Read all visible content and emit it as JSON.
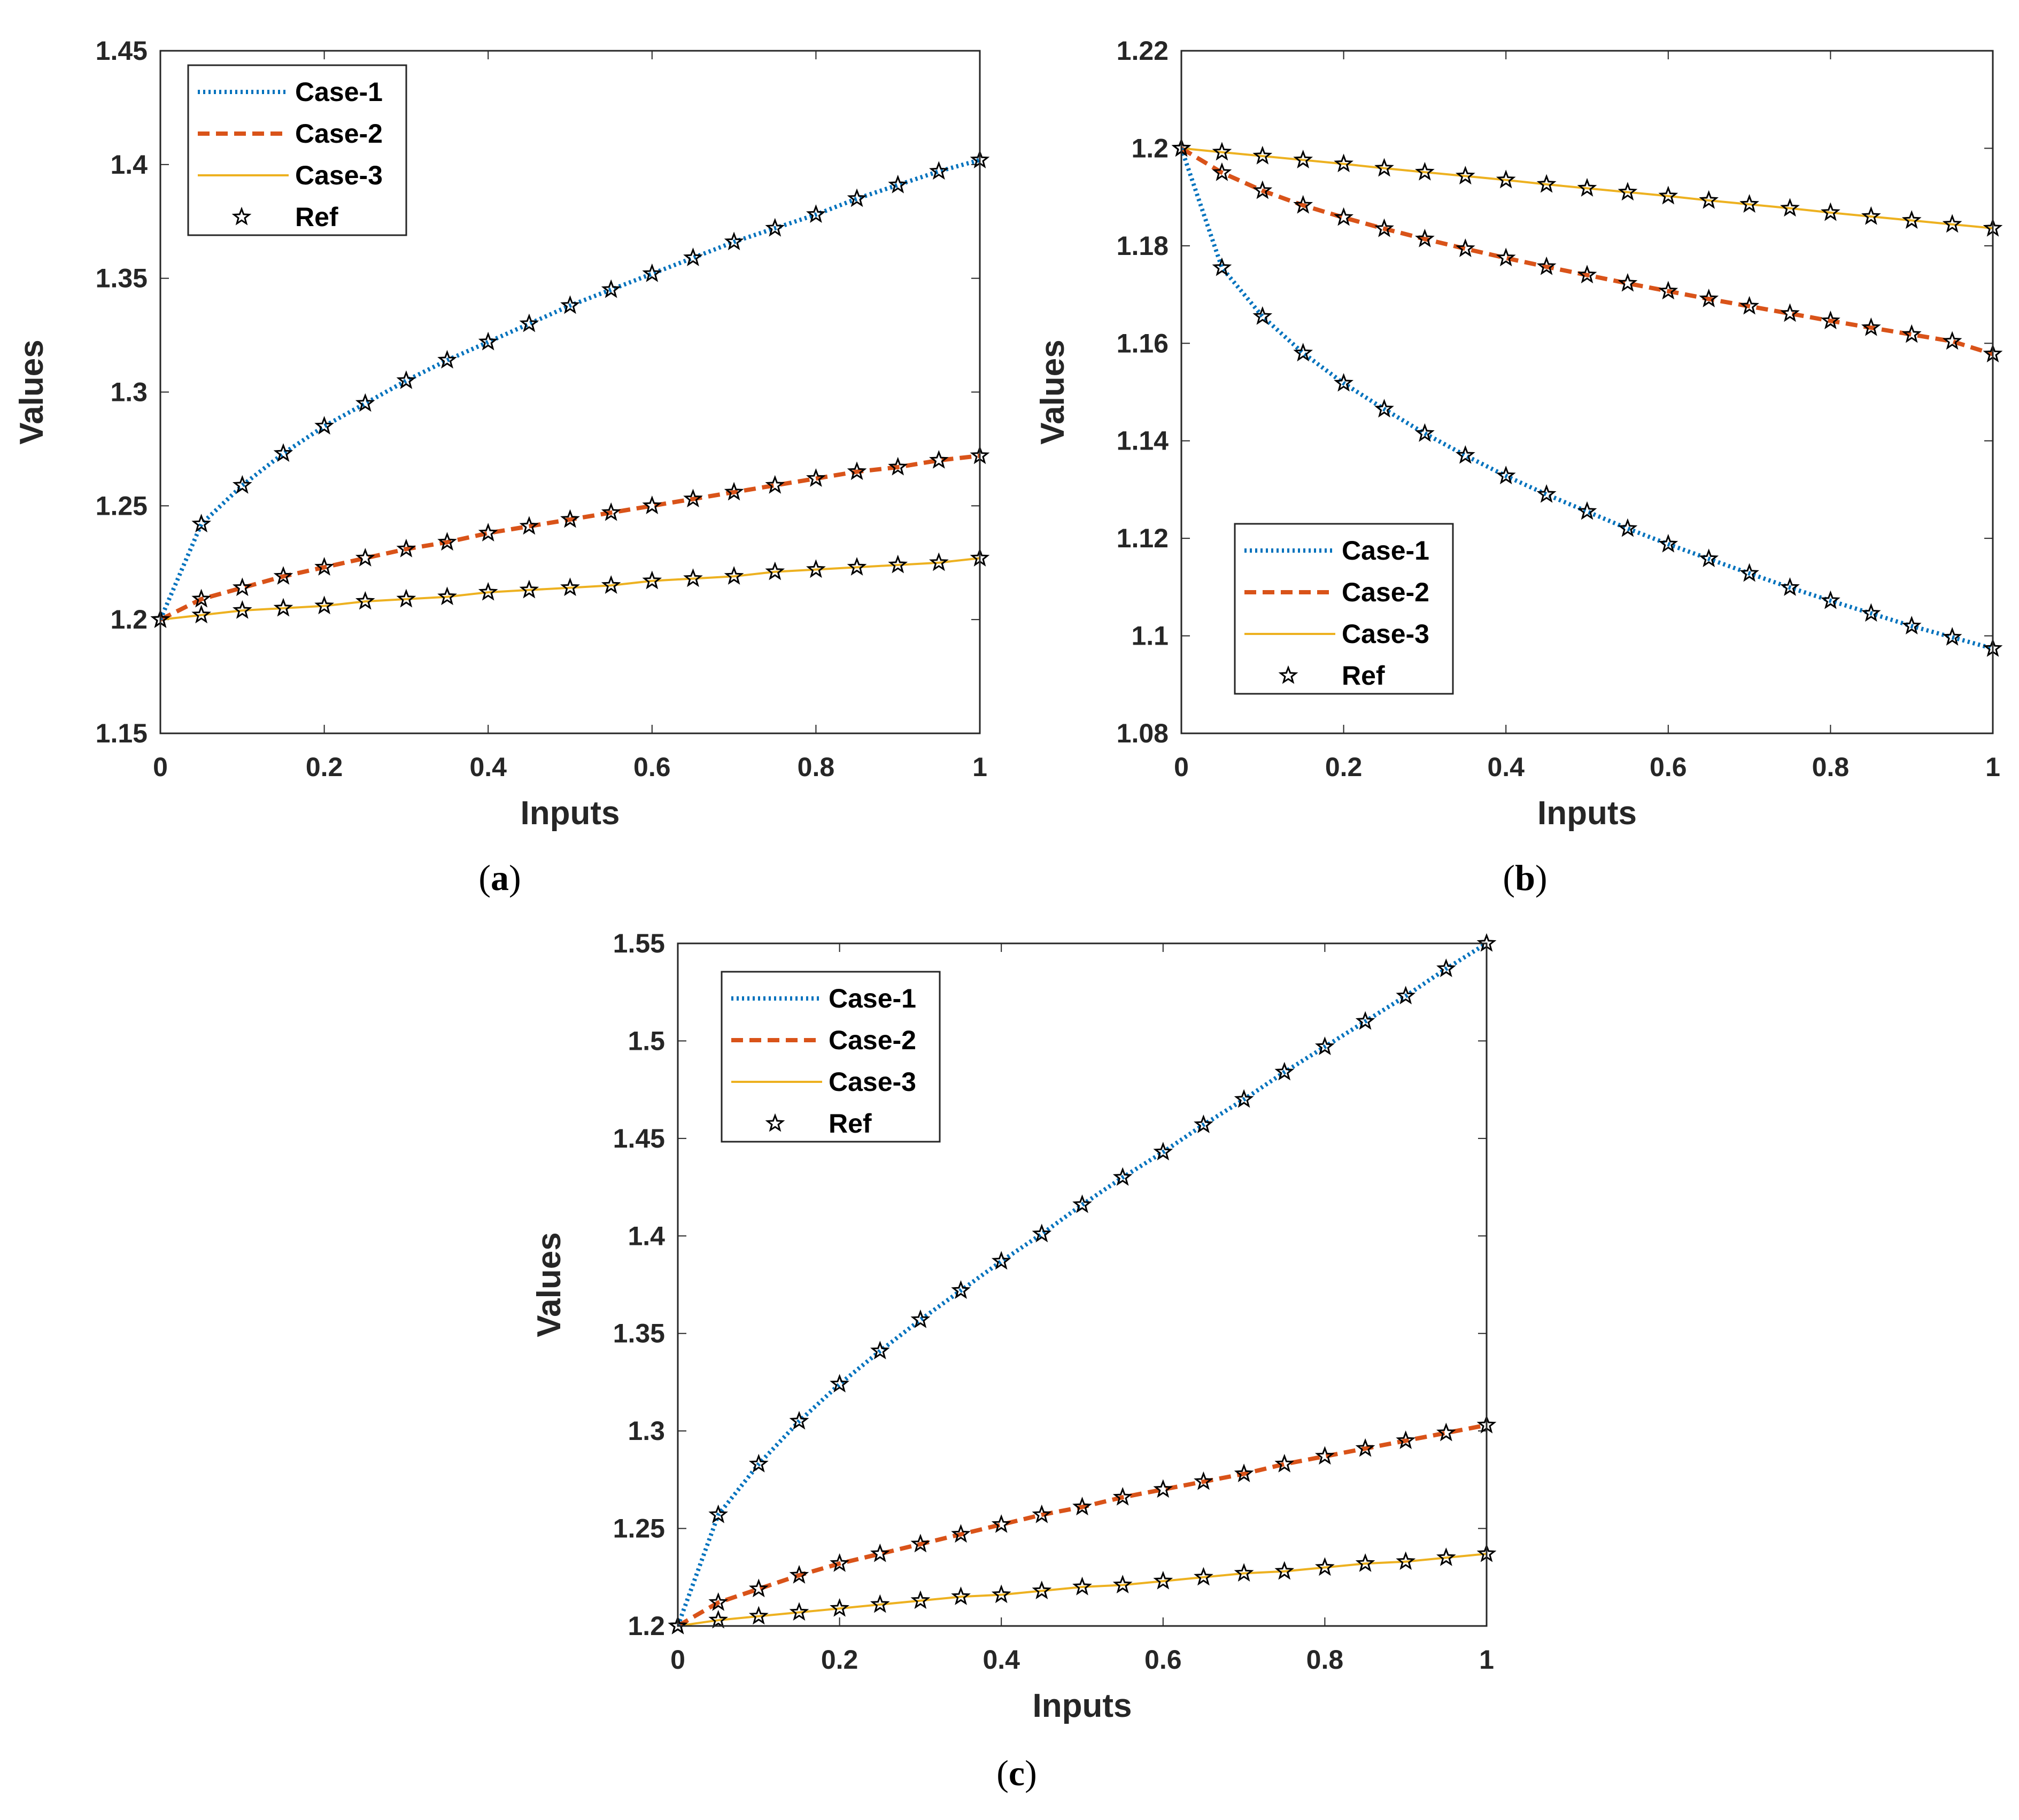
{
  "figure": {
    "captions": [
      "(a)",
      "(b)",
      "(c)"
    ],
    "caption_letters": [
      "a",
      "b",
      "c"
    ]
  },
  "chart_data": [
    {
      "panel": "(a)",
      "type": "line",
      "xlabel": "Inputs",
      "ylabel": "Values",
      "xlim": [
        0,
        1
      ],
      "ylim": [
        1.15,
        1.45
      ],
      "xticks": [
        0,
        0.2,
        0.4,
        0.6,
        0.8,
        1
      ],
      "xtick_labels": [
        "0",
        "0.2",
        "0.4",
        "0.6",
        "0.8",
        "1"
      ],
      "yticks": [
        1.15,
        1.2,
        1.25,
        1.3,
        1.35,
        1.4,
        1.45
      ],
      "ytick_labels": [
        "1.15",
        "1.2",
        "1.25",
        "1.3",
        "1.35",
        "1.4",
        "1.45"
      ],
      "legend_position": "top-left",
      "x": [
        0,
        0.05,
        0.1,
        0.15,
        0.2,
        0.25,
        0.3,
        0.35,
        0.4,
        0.45,
        0.5,
        0.55,
        0.6,
        0.65,
        0.7,
        0.75,
        0.8,
        0.85,
        0.9,
        0.95,
        1
      ],
      "series": [
        {
          "name": "Case-1",
          "style": "dotted",
          "color": "#0072BD",
          "values": [
            1.2,
            1.242,
            1.259,
            1.273,
            1.285,
            1.295,
            1.305,
            1.314,
            1.322,
            1.33,
            1.338,
            1.345,
            1.352,
            1.359,
            1.366,
            1.372,
            1.378,
            1.385,
            1.391,
            1.397,
            1.402
          ]
        },
        {
          "name": "Case-2",
          "style": "dashed",
          "color": "#D95319",
          "values": [
            1.2,
            1.209,
            1.214,
            1.219,
            1.223,
            1.227,
            1.231,
            1.234,
            1.238,
            1.241,
            1.244,
            1.247,
            1.25,
            1.253,
            1.256,
            1.259,
            1.262,
            1.265,
            1.267,
            1.27,
            1.272
          ]
        },
        {
          "name": "Case-3",
          "style": "solid",
          "color": "#EDB120",
          "values": [
            1.2,
            1.202,
            1.204,
            1.205,
            1.206,
            1.208,
            1.209,
            1.21,
            1.212,
            1.213,
            1.214,
            1.215,
            1.217,
            1.218,
            1.219,
            1.221,
            1.222,
            1.223,
            1.224,
            1.225,
            1.227
          ]
        },
        {
          "name": "Ref",
          "style": "marker",
          "color": "#000000",
          "marker": "pentagram",
          "on_series": [
            "Case-1",
            "Case-2",
            "Case-3"
          ]
        }
      ]
    },
    {
      "panel": "(b)",
      "type": "line",
      "xlabel": "Inputs",
      "ylabel": "Values",
      "xlim": [
        0,
        1
      ],
      "ylim": [
        1.08,
        1.22
      ],
      "xticks": [
        0,
        0.2,
        0.4,
        0.6,
        0.8,
        1
      ],
      "xtick_labels": [
        "0",
        "0.2",
        "0.4",
        "0.6",
        "0.8",
        "1"
      ],
      "yticks": [
        1.08,
        1.1,
        1.12,
        1.14,
        1.16,
        1.18,
        1.2,
        1.22
      ],
      "ytick_labels": [
        "1.08",
        "1.1",
        "1.12",
        "1.14",
        "1.16",
        "1.18",
        "1.2",
        "1.22"
      ],
      "legend_position": "bottom-left",
      "x": [
        0,
        0.05,
        0.1,
        0.15,
        0.2,
        0.25,
        0.3,
        0.35,
        0.4,
        0.45,
        0.5,
        0.55,
        0.6,
        0.65,
        0.7,
        0.75,
        0.8,
        0.85,
        0.9,
        0.95,
        1
      ],
      "series": [
        {
          "name": "Case-1",
          "style": "dotted",
          "color": "#0072BD",
          "values": [
            1.2,
            1.1755,
            1.1655,
            1.158,
            1.1518,
            1.1465,
            1.1415,
            1.137,
            1.1328,
            1.129,
            1.1255,
            1.122,
            1.1188,
            1.1158,
            1.1128,
            1.1099,
            1.1072,
            1.1046,
            1.102,
            1.0997,
            1.0974
          ]
        },
        {
          "name": "Case-2",
          "style": "dashed",
          "color": "#D95319",
          "values": [
            1.2,
            1.195,
            1.1913,
            1.1883,
            1.1858,
            1.1835,
            1.1814,
            1.1794,
            1.1775,
            1.1757,
            1.174,
            1.1723,
            1.1707,
            1.1691,
            1.1676,
            1.1661,
            1.1646,
            1.1632,
            1.1618,
            1.1604,
            1.1578
          ]
        },
        {
          "name": "Case-3",
          "style": "solid",
          "color": "#EDB120",
          "values": [
            1.2,
            1.1992,
            1.1984,
            1.1976,
            1.1968,
            1.1959,
            1.1951,
            1.1943,
            1.1935,
            1.1926,
            1.1918,
            1.191,
            1.1902,
            1.1893,
            1.1885,
            1.1877,
            1.1868,
            1.186,
            1.1852,
            1.1844,
            1.1836
          ]
        },
        {
          "name": "Ref",
          "style": "marker",
          "color": "#000000",
          "marker": "pentagram",
          "on_series": [
            "Case-1",
            "Case-2",
            "Case-3"
          ]
        }
      ]
    },
    {
      "panel": "(c)",
      "type": "line",
      "xlabel": "Inputs",
      "ylabel": "Values",
      "xlim": [
        0,
        1
      ],
      "ylim": [
        1.2,
        1.55
      ],
      "xticks": [
        0,
        0.2,
        0.4,
        0.6,
        0.8,
        1
      ],
      "xtick_labels": [
        "0",
        "0.2",
        "0.4",
        "0.6",
        "0.8",
        "1"
      ],
      "yticks": [
        1.2,
        1.25,
        1.3,
        1.35,
        1.4,
        1.45,
        1.5,
        1.55
      ],
      "ytick_labels": [
        "1.2",
        "1.25",
        "1.3",
        "1.35",
        "1.4",
        "1.45",
        "1.5",
        "1.55"
      ],
      "legend_position": "top-left",
      "x": [
        0,
        0.05,
        0.1,
        0.15,
        0.2,
        0.25,
        0.3,
        0.35,
        0.4,
        0.45,
        0.5,
        0.55,
        0.6,
        0.65,
        0.7,
        0.75,
        0.8,
        0.85,
        0.9,
        0.95,
        1
      ],
      "series": [
        {
          "name": "Case-1",
          "style": "dotted",
          "color": "#0072BD",
          "values": [
            1.2,
            1.257,
            1.283,
            1.305,
            1.324,
            1.341,
            1.357,
            1.372,
            1.387,
            1.401,
            1.416,
            1.43,
            1.443,
            1.457,
            1.47,
            1.484,
            1.497,
            1.51,
            1.523,
            1.537,
            1.55
          ]
        },
        {
          "name": "Case-2",
          "style": "dashed",
          "color": "#D95319",
          "values": [
            1.2,
            1.212,
            1.219,
            1.226,
            1.232,
            1.237,
            1.242,
            1.247,
            1.252,
            1.257,
            1.261,
            1.266,
            1.27,
            1.274,
            1.278,
            1.283,
            1.287,
            1.291,
            1.295,
            1.299,
            1.303
          ]
        },
        {
          "name": "Case-3",
          "style": "solid",
          "color": "#EDB120",
          "values": [
            1.2,
            1.203,
            1.205,
            1.207,
            1.209,
            1.211,
            1.213,
            1.215,
            1.216,
            1.218,
            1.22,
            1.221,
            1.223,
            1.225,
            1.227,
            1.228,
            1.23,
            1.232,
            1.233,
            1.235,
            1.237
          ]
        },
        {
          "name": "Ref",
          "style": "marker",
          "color": "#000000",
          "marker": "pentagram",
          "on_series": [
            "Case-1",
            "Case-2",
            "Case-3"
          ]
        }
      ]
    }
  ]
}
